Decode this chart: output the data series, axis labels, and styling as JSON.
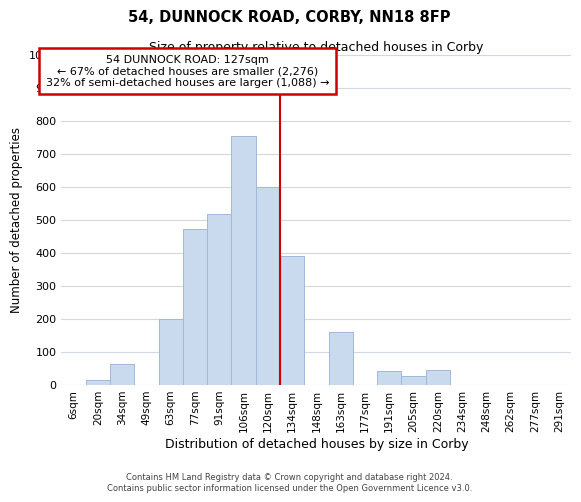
{
  "title": "54, DUNNOCK ROAD, CORBY, NN18 8FP",
  "subtitle": "Size of property relative to detached houses in Corby",
  "xlabel": "Distribution of detached houses by size in Corby",
  "ylabel": "Number of detached properties",
  "bar_labels": [
    "6sqm",
    "20sqm",
    "34sqm",
    "49sqm",
    "63sqm",
    "77sqm",
    "91sqm",
    "106sqm",
    "120sqm",
    "134sqm",
    "148sqm",
    "163sqm",
    "177sqm",
    "191sqm",
    "205sqm",
    "220sqm",
    "234sqm",
    "248sqm",
    "262sqm",
    "277sqm",
    "291sqm"
  ],
  "bar_values": [
    0,
    13,
    63,
    0,
    197,
    470,
    518,
    754,
    597,
    390,
    0,
    160,
    0,
    42,
    25,
    45,
    0,
    0,
    0,
    0,
    0
  ],
  "bar_color": "#c9d9ee",
  "bar_edge_color": "#a0b8d8",
  "ylim": [
    0,
    1000
  ],
  "yticks": [
    0,
    100,
    200,
    300,
    400,
    500,
    600,
    700,
    800,
    900,
    1000
  ],
  "property_line_color": "#cc0000",
  "annotation_title": "54 DUNNOCK ROAD: 127sqm",
  "annotation_line1": "← 67% of detached houses are smaller (2,276)",
  "annotation_line2": "32% of semi-detached houses are larger (1,088) →",
  "annotation_box_color": "#ffffff",
  "annotation_box_edge_color": "#cc0000",
  "footer1": "Contains HM Land Registry data © Crown copyright and database right 2024.",
  "footer2": "Contains public sector information licensed under the Open Government Licence v3.0.",
  "background_color": "#ffffff",
  "grid_color": "#d0d8e4"
}
